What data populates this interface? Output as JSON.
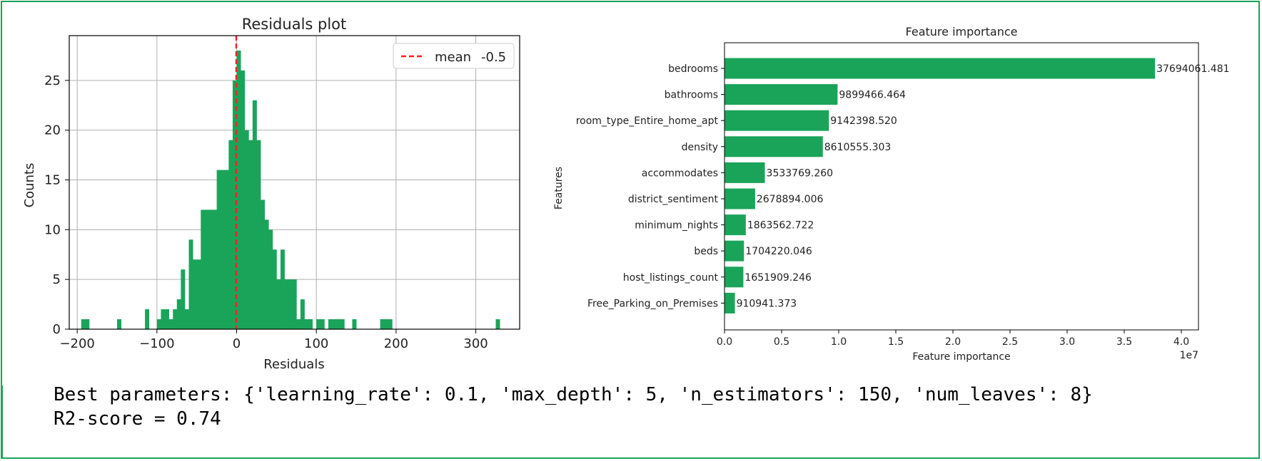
{
  "colors": {
    "bar": "#1aa45a",
    "mean_line": "#ff2020",
    "frame": "#1aa45a",
    "grid": "#b0b0b0"
  },
  "chart_data": [
    {
      "type": "histogram",
      "title": "Residuals plot",
      "xlabel": "Residuals",
      "ylabel": "Counts",
      "xlim": [
        -210,
        355
      ],
      "ylim": [
        0,
        29.5
      ],
      "xticks": [
        -200,
        -100,
        0,
        100,
        200,
        300
      ],
      "xtick_labels": [
        "−200",
        "−100",
        "0",
        "100",
        "200",
        "300"
      ],
      "yticks": [
        0,
        5,
        10,
        15,
        20,
        25
      ],
      "grid": true,
      "bin_width": 5,
      "bins": [
        [
          -195,
          1
        ],
        [
          -190,
          1
        ],
        [
          -150,
          1
        ],
        [
          -115,
          2
        ],
        [
          -100,
          1
        ],
        [
          -95,
          2
        ],
        [
          -90,
          2
        ],
        [
          -85,
          1
        ],
        [
          -80,
          2
        ],
        [
          -75,
          3
        ],
        [
          -70,
          6
        ],
        [
          -65,
          2
        ],
        [
          -60,
          9
        ],
        [
          -55,
          7
        ],
        [
          -50,
          7
        ],
        [
          -45,
          12
        ],
        [
          -40,
          12
        ],
        [
          -35,
          12
        ],
        [
          -30,
          12
        ],
        [
          -25,
          16
        ],
        [
          -20,
          16
        ],
        [
          -15,
          16
        ],
        [
          -10,
          19
        ],
        [
          -5,
          25
        ],
        [
          0,
          28
        ],
        [
          5,
          26
        ],
        [
          10,
          20
        ],
        [
          15,
          19
        ],
        [
          20,
          23
        ],
        [
          25,
          19
        ],
        [
          30,
          13
        ],
        [
          35,
          11
        ],
        [
          40,
          10
        ],
        [
          45,
          8
        ],
        [
          50,
          5
        ],
        [
          55,
          8
        ],
        [
          60,
          5
        ],
        [
          65,
          5
        ],
        [
          70,
          5
        ],
        [
          75,
          1
        ],
        [
          80,
          3
        ],
        [
          85,
          1
        ],
        [
          90,
          1
        ],
        [
          100,
          1
        ],
        [
          105,
          1
        ],
        [
          115,
          1
        ],
        [
          120,
          1
        ],
        [
          125,
          1
        ],
        [
          130,
          1
        ],
        [
          145,
          1
        ],
        [
          180,
          1
        ],
        [
          185,
          1
        ],
        [
          190,
          1
        ],
        [
          325,
          1
        ]
      ],
      "mean_line": {
        "x": -0.5
      },
      "legend": {
        "label": "mean",
        "value": "-0.5",
        "position": "top-right"
      }
    },
    {
      "type": "bar",
      "orientation": "horizontal",
      "title": "Feature importance",
      "xlabel": "Feature importance",
      "ylabel": "Features",
      "x_scale_label": "1e7",
      "xlim": [
        0,
        41500000
      ],
      "xticks": [
        0,
        5000000,
        10000000,
        15000000,
        20000000,
        25000000,
        30000000,
        35000000,
        40000000
      ],
      "xtick_labels": [
        "0.0",
        "0.5",
        "1.0",
        "1.5",
        "2.0",
        "2.5",
        "3.0",
        "3.5",
        "4.0"
      ],
      "grid": false,
      "categories": [
        "bedrooms",
        "bathrooms",
        "room_type_Entire_home_apt",
        "density",
        "accommodates",
        "district_sentiment",
        "minimum_nights",
        "beds",
        "host_listings_count",
        "Free_Parking_on_Premises"
      ],
      "values": [
        37694061.481,
        9899466.464,
        9142398.52,
        8610555.303,
        3533769.26,
        2678894.006,
        1863562.722,
        1704220.046,
        1651909.246,
        910941.373
      ],
      "value_labels": [
        "37694061.481",
        "9899466.464",
        "9142398.520",
        "8610555.303",
        "3533769.260",
        "2678894.006",
        "1863562.722",
        "1704220.046",
        "1651909.246",
        "910941.373"
      ]
    }
  ],
  "output": {
    "line1": "Best parameters: {'learning_rate': 0.1, 'max_depth': 5, 'n_estimators': 150, 'num_leaves': 8}",
    "line2": "R2-score = 0.74"
  }
}
